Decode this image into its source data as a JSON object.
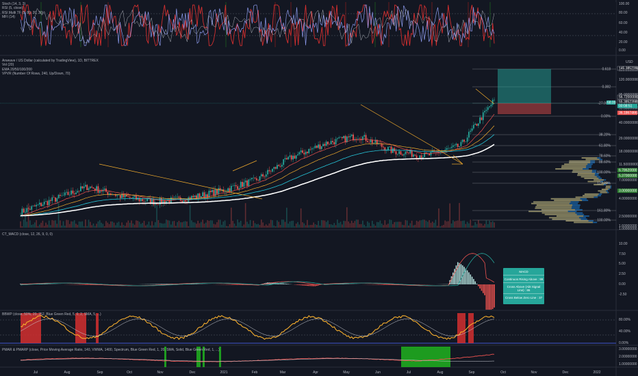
{
  "panels": {
    "stoch": {
      "legend": [
        "Stoch (14, 3, 3)",
        "RSI (5, close)",
        "RSI Multi TF (5, 80, 20, 30)",
        "MFI (14)"
      ],
      "ticks": [
        "100.00",
        "80.00",
        "60.00",
        "40.00",
        "20.00",
        "0.00"
      ]
    },
    "price": {
      "legend": [
        "Arweave / US Dollar (calculated by TradingView), 1D, BITTREX",
        "Vol (20)",
        "EMA 20/50/100/200",
        "VPVR (Number Of Rows, 240, Up/Down, 70)"
      ],
      "unit": "USD",
      "ticks": [
        "150.00000000",
        "120.00000000",
        "95.00000000",
        "55.00000000",
        "40.00000000",
        "29.00000000",
        "18.00000000",
        "11.50000000",
        "7.00000000",
        "4.00000000",
        "2.50000000",
        "1.60000000",
        "1.00000000"
      ],
      "fib_labels": [
        "0.618",
        "0.382",
        "-27.00%",
        "0.00%",
        "38.20%",
        "61.80%",
        "78.60%",
        "88.60%",
        "100.00%",
        "127.20%",
        "161.80%",
        "100.00%"
      ],
      "price_tags": [
        {
          "text": "145.38523989",
          "color": "#ffffff",
          "bg": "#131722"
        },
        {
          "text": "56.72000000",
          "color": "#ffffff",
          "bg": "#131722"
        },
        {
          "text": "55.38523989",
          "color": "#ffffff",
          "bg": "#131722"
        },
        {
          "text": "00:08:51",
          "color": "#ffffff",
          "bg": "#26a69a"
        },
        {
          "text": "36.18674667",
          "color": "#ffffff",
          "bg": "#ef5350"
        },
        {
          "text": "6.78620000",
          "color": "#ffffff",
          "bg": "#2e7d32"
        },
        {
          "text": "5.37000000",
          "color": "#ffffff",
          "bg": "#2e7d32"
        },
        {
          "text": "3.00000000",
          "color": "#ffffff",
          "bg": "#2e7d32"
        }
      ],
      "small_tag": "68.00"
    },
    "macd": {
      "legend": [
        "CT_MACD (close, 12, 26, 9, 0, 0)"
      ],
      "ticks": [
        "10.00",
        "7.50",
        "5.00",
        "2.50",
        "0.00",
        "-2.50"
      ],
      "box_title": "MACD",
      "box_lines": [
        "Continuos Rising Above : 99",
        "Cross Above (Abt Signal Line) : 86",
        "Cross Below Zero Line : 37"
      ]
    },
    "bbwp": {
      "legend": [
        "BBWP (close, 50%, 20, 252, Blue Green Red, 5, 0, 2, SMA, 5, ...)"
      ],
      "ticks": [
        "80.00%",
        "40.00%",
        "0.00%"
      ]
    },
    "pmar": {
      "legend": [
        "PMAR & PMARP (close, Price Moving Average Ratio, 140, VWMA, 1400, Spectrum, Blue Green Red, 1, 20, SMA, Solid, Blue Green Red, 1, ...)"
      ],
      "ticks": [
        "3.00000000",
        "2.00000000",
        "1.00000000"
      ]
    }
  },
  "time_axis": [
    "Jul",
    "Aug",
    "Sep",
    "Oct",
    "Nov",
    "Dec",
    "2021",
    "Feb",
    "Mar",
    "Apr",
    "May",
    "Jun",
    "Jul",
    "Aug",
    "Sep",
    "Oct",
    "Nov",
    "Dec",
    "2022"
  ],
  "colors": {
    "background": "#131722",
    "up": "#26a69a",
    "down": "#ef5350",
    "fib": "#f6ae2d",
    "grid": "#2a2e39"
  },
  "chart_data": {
    "type": "line",
    "title": "Arweave / US Dollar (calculated by TradingView), 1D, BITTREX",
    "xlabel": "",
    "ylabel": "USD",
    "x": [
      "Jul",
      "Aug",
      "Sep",
      "Oct",
      "Nov",
      "Dec",
      "2021",
      "Feb",
      "Mar",
      "Apr",
      "May",
      "Jun",
      "Jul",
      "Aug",
      "Sep"
    ],
    "series": [
      {
        "name": "",
        "values": [
          1.6,
          2.4,
          3.6,
          2.6,
          2.2,
          2.5,
          3.2,
          4.5,
          9.0,
          14.0,
          18.0,
          11.0,
          9.5,
          13.0,
          55.0
        ]
      }
    ],
    "ylim": [
      1.0,
      150.0
    ],
    "scale": "log",
    "grid": true
  }
}
